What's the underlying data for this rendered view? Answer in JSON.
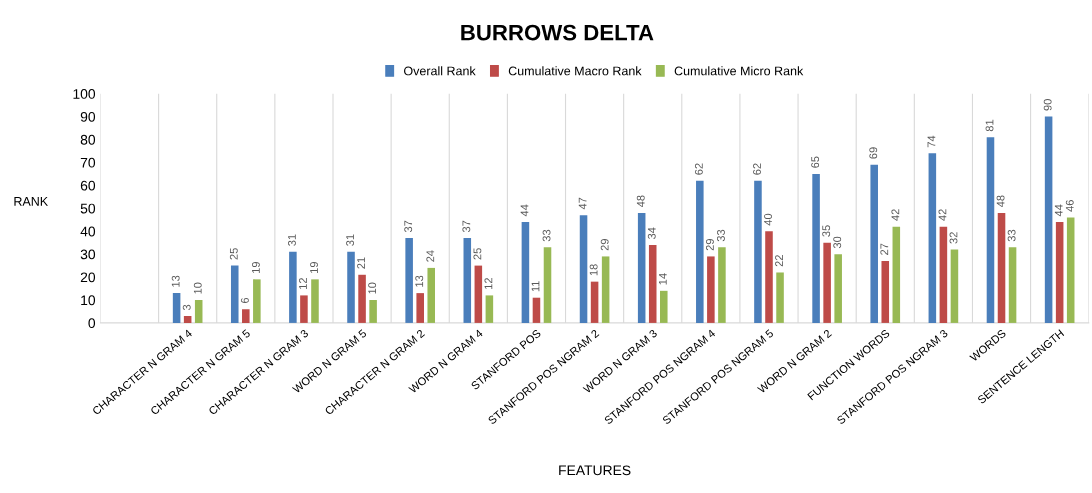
{
  "chart_data": {
    "type": "bar",
    "title": "BURROWS DELTA",
    "xlabel": "FEATURES",
    "ylabel": "RANK",
    "categories": [
      null,
      "CHARACTER N GRAM 4",
      "CHARACTER N GRAM 5",
      "CHARACTER N GRAM 3",
      "WORD N GRAM 5",
      "CHARACTER N GRAM 2",
      "WORD N GRAM 4",
      "STANFORD POS",
      "STANFORD POS NGRAM 2",
      "WORD N GRAM 3",
      "STANFORD POS NGRAM 4",
      "STANFORD POS NGRAM 5",
      "WORD N GRAM 2",
      "FUNCTION WORDS",
      "STANFORD POS NGRAM 3",
      "WORDS",
      "SENTENCE LENGTH"
    ],
    "series": [
      {
        "name": "Overall Rank",
        "color": "#4a7ebb",
        "values": [
          null,
          13,
          25,
          31,
          31,
          37,
          37,
          44,
          47,
          48,
          62,
          62,
          65,
          69,
          74,
          81,
          90
        ]
      },
      {
        "name": "Cumulative Macro Rank",
        "color": "#be4b48",
        "values": [
          null,
          3,
          6,
          12,
          21,
          13,
          25,
          11,
          18,
          34,
          29,
          40,
          35,
          27,
          42,
          48,
          44
        ]
      },
      {
        "name": "Cumulative Micro Rank",
        "color": "#98b954",
        "values": [
          null,
          10,
          19,
          19,
          10,
          24,
          12,
          33,
          29,
          14,
          33,
          22,
          30,
          42,
          32,
          33,
          46
        ]
      }
    ],
    "ylim": [
      0,
      100
    ],
    "yticks": [
      0,
      10,
      20,
      30,
      40,
      50,
      60,
      70,
      80,
      90,
      100
    ],
    "grid": "x",
    "legend": "top",
    "data_labels": true
  }
}
